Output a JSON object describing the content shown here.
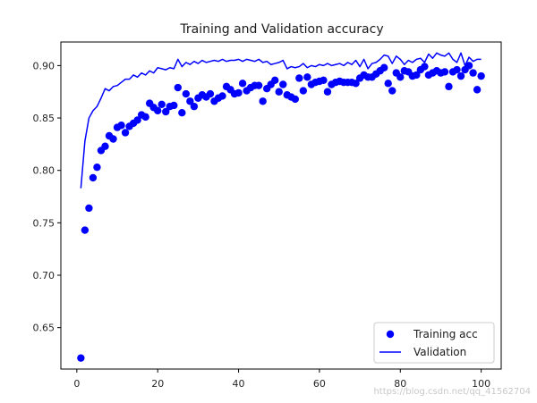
{
  "chart_data": {
    "type": "line",
    "title": "Training and Validation accuracy",
    "xlabel": "",
    "ylabel": "",
    "xlim": [
      -3.95,
      104.95
    ],
    "ylim": [
      0.6105,
      0.9225
    ],
    "xticks": [
      0,
      20,
      40,
      60,
      80,
      100
    ],
    "yticks": [
      0.65,
      0.7,
      0.75,
      0.8,
      0.85,
      0.9
    ],
    "ytick_labels": [
      "0.65",
      "0.70",
      "0.75",
      "0.80",
      "0.85",
      "0.90"
    ],
    "grid": false,
    "legend_position": "lower right",
    "colors": {
      "series": "#0000ff",
      "axes": "#000000"
    },
    "series": [
      {
        "name": "Training acc",
        "style": "markers",
        "x": [
          1,
          2,
          3,
          4,
          5,
          6,
          7,
          8,
          9,
          10,
          11,
          12,
          13,
          14,
          15,
          16,
          17,
          18,
          19,
          20,
          21,
          22,
          23,
          24,
          25,
          26,
          27,
          28,
          29,
          30,
          31,
          32,
          33,
          34,
          35,
          36,
          37,
          38,
          39,
          40,
          41,
          42,
          43,
          44,
          45,
          46,
          47,
          48,
          49,
          50,
          51,
          52,
          53,
          54,
          55,
          56,
          57,
          58,
          59,
          60,
          61,
          62,
          63,
          64,
          65,
          66,
          67,
          68,
          69,
          70,
          71,
          72,
          73,
          74,
          75,
          76,
          77,
          78,
          79,
          80,
          81,
          82,
          83,
          84,
          85,
          86,
          87,
          88,
          89,
          90,
          91,
          92,
          93,
          94,
          95,
          96,
          97,
          98,
          99,
          100
        ],
        "y": [
          0.621,
          0.743,
          0.764,
          0.793,
          0.803,
          0.819,
          0.823,
          0.833,
          0.83,
          0.841,
          0.843,
          0.836,
          0.842,
          0.845,
          0.848,
          0.853,
          0.851,
          0.864,
          0.86,
          0.857,
          0.863,
          0.856,
          0.861,
          0.862,
          0.879,
          0.855,
          0.873,
          0.866,
          0.861,
          0.869,
          0.872,
          0.87,
          0.873,
          0.866,
          0.869,
          0.871,
          0.88,
          0.877,
          0.873,
          0.874,
          0.883,
          0.876,
          0.879,
          0.881,
          0.881,
          0.866,
          0.878,
          0.882,
          0.886,
          0.875,
          0.882,
          0.872,
          0.87,
          0.868,
          0.888,
          0.876,
          0.889,
          0.882,
          0.884,
          0.885,
          0.886,
          0.875,
          0.882,
          0.884,
          0.885,
          0.884,
          0.884,
          0.884,
          0.883,
          0.888,
          0.891,
          0.889,
          0.889,
          0.892,
          0.895,
          0.898,
          0.883,
          0.876,
          0.893,
          0.889,
          0.895,
          0.894,
          0.89,
          0.891,
          0.896,
          0.899,
          0.891,
          0.893,
          0.895,
          0.893,
          0.894,
          0.88,
          0.894,
          0.896,
          0.89,
          0.896,
          0.9,
          0.893,
          0.877,
          0.89
        ]
      },
      {
        "name": "Validation",
        "style": "line",
        "x": [
          1,
          2,
          3,
          4,
          5,
          6,
          7,
          8,
          9,
          10,
          11,
          12,
          13,
          14,
          15,
          16,
          17,
          18,
          19,
          20,
          21,
          22,
          23,
          24,
          25,
          26,
          27,
          28,
          29,
          30,
          31,
          32,
          33,
          34,
          35,
          36,
          37,
          38,
          39,
          40,
          41,
          42,
          43,
          44,
          45,
          46,
          47,
          48,
          49,
          50,
          51,
          52,
          53,
          54,
          55,
          56,
          57,
          58,
          59,
          60,
          61,
          62,
          63,
          64,
          65,
          66,
          67,
          68,
          69,
          70,
          71,
          72,
          73,
          74,
          75,
          76,
          77,
          78,
          79,
          80,
          81,
          82,
          83,
          84,
          85,
          86,
          87,
          88,
          89,
          90,
          91,
          92,
          93,
          94,
          95,
          96,
          97,
          98,
          99,
          100
        ],
        "y": [
          0.783,
          0.828,
          0.85,
          0.857,
          0.861,
          0.869,
          0.878,
          0.876,
          0.88,
          0.881,
          0.884,
          0.887,
          0.887,
          0.891,
          0.889,
          0.893,
          0.891,
          0.895,
          0.893,
          0.898,
          0.897,
          0.896,
          0.898,
          0.897,
          0.906,
          0.899,
          0.903,
          0.901,
          0.904,
          0.902,
          0.905,
          0.903,
          0.904,
          0.905,
          0.904,
          0.906,
          0.904,
          0.905,
          0.905,
          0.906,
          0.904,
          0.906,
          0.905,
          0.904,
          0.906,
          0.903,
          0.904,
          0.901,
          0.902,
          0.903,
          0.905,
          0.897,
          0.899,
          0.898,
          0.899,
          0.902,
          0.898,
          0.9,
          0.899,
          0.901,
          0.9,
          0.902,
          0.9,
          0.901,
          0.902,
          0.9,
          0.903,
          0.901,
          0.905,
          0.899,
          0.906,
          0.897,
          0.902,
          0.903,
          0.906,
          0.91,
          0.909,
          0.902,
          0.909,
          0.906,
          0.901,
          0.905,
          0.903,
          0.906,
          0.907,
          0.903,
          0.911,
          0.907,
          0.912,
          0.91,
          0.909,
          0.912,
          0.906,
          0.903,
          0.912,
          0.9,
          0.908,
          0.904,
          0.906,
          0.906
        ]
      }
    ]
  },
  "watermark_text": "https://blog.csdn.net/qq_41562704"
}
